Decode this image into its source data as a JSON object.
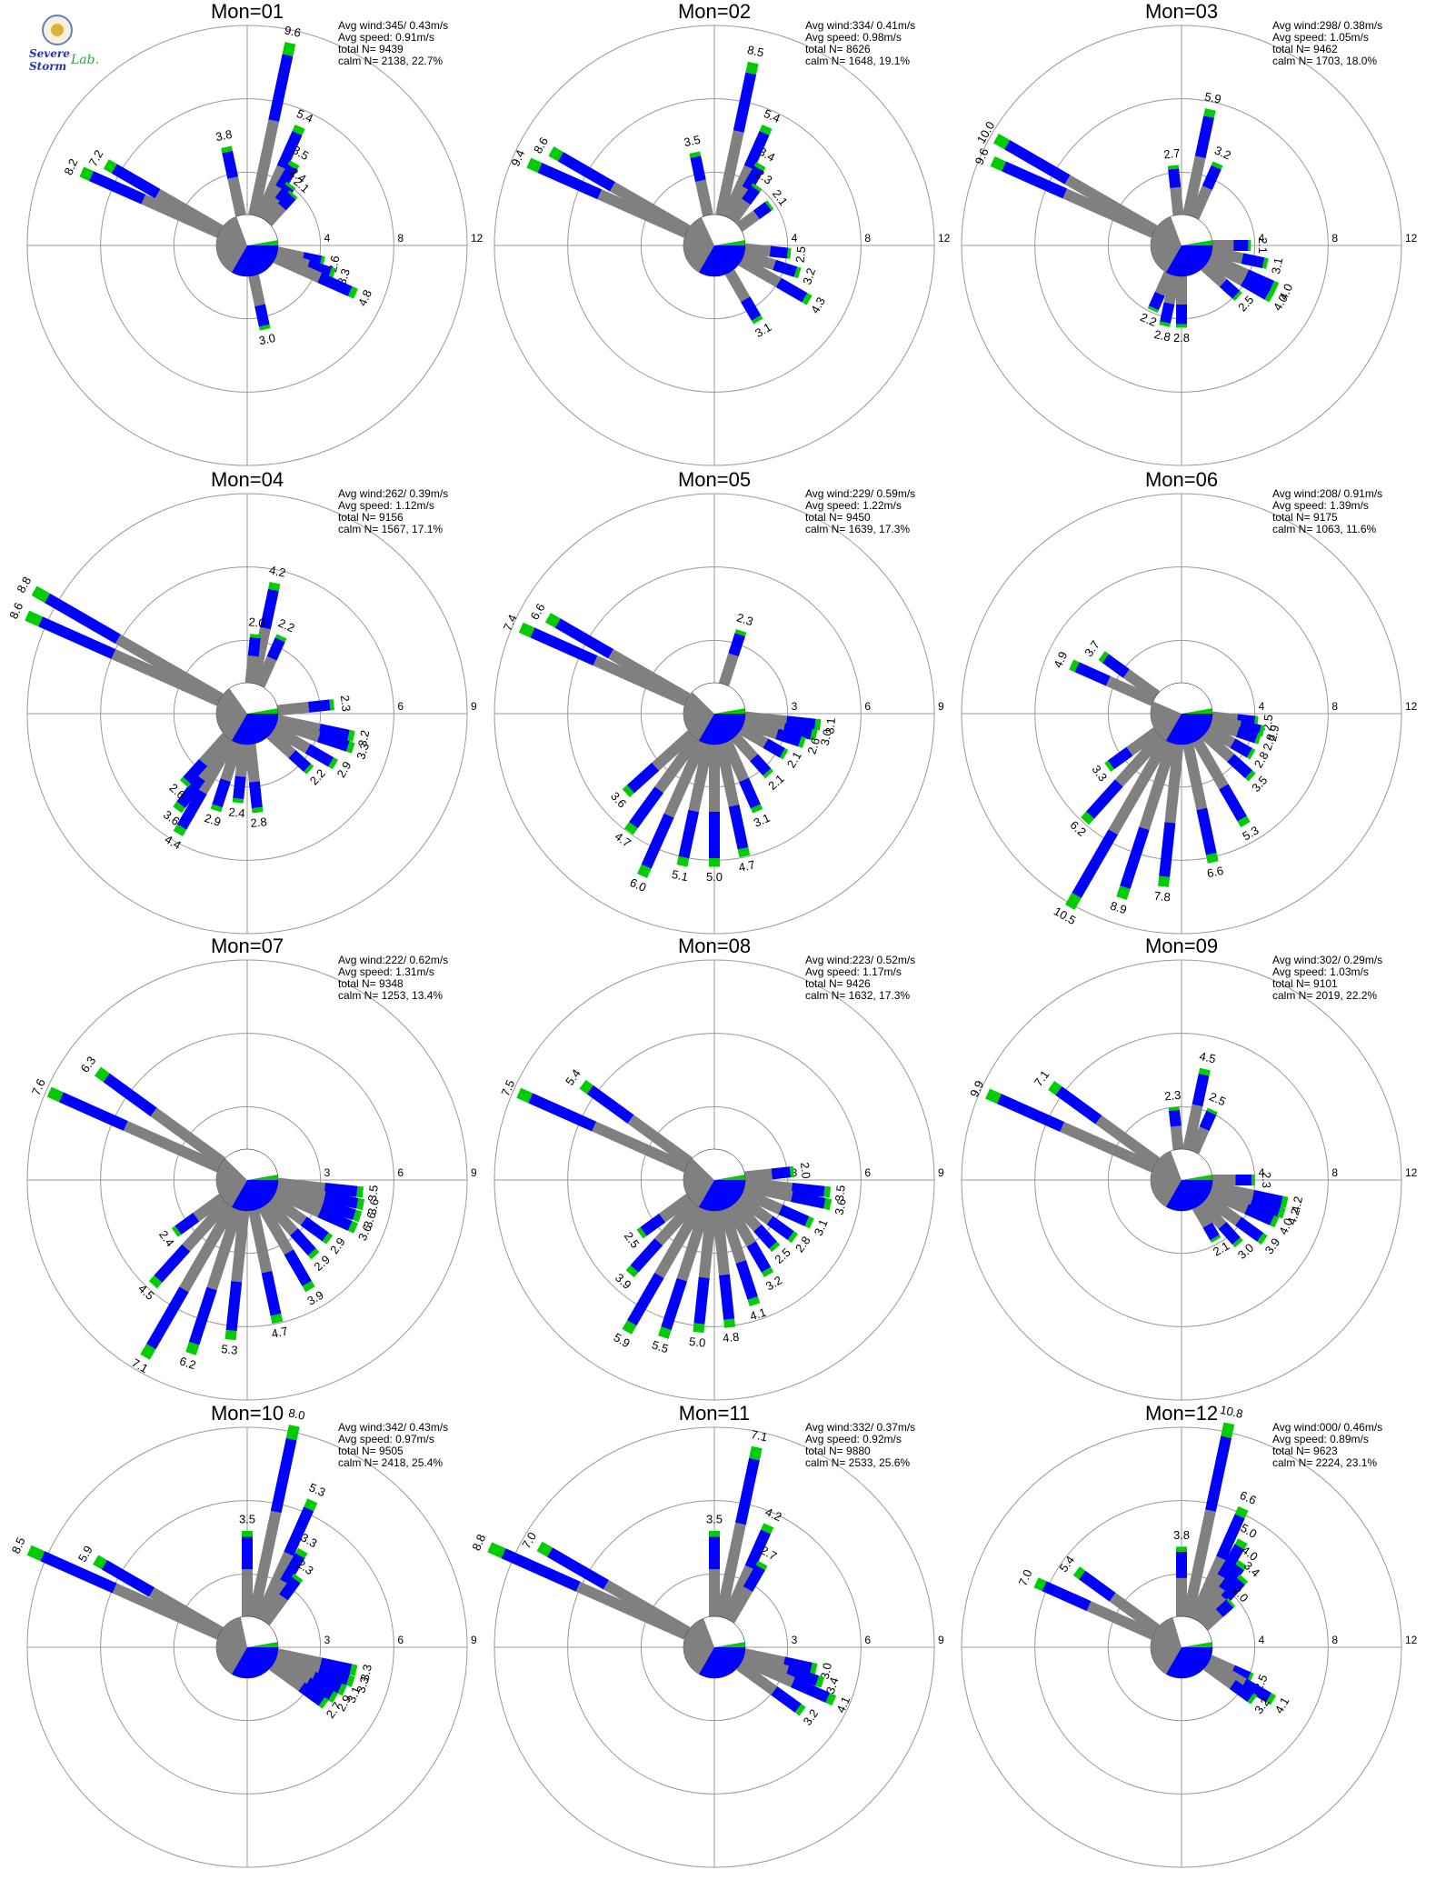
{
  "logo": {
    "line1": "Severe Storm",
    "line2": "Lab."
  },
  "colors": {
    "calm": "#808080",
    "bin1": "#808080",
    "bin2": "#0000ff",
    "bin3": "#00cc00",
    "grid": "#999999"
  },
  "chart_data": [
    {
      "type": "polar-bar",
      "title": "Mon=01",
      "info": [
        "Avg wind:345/ 0.43m/s",
        "Avg speed: 0.91m/s",
        "total N=      9439",
        "calm N=   2138,  22.7%"
      ],
      "ring_max": 12,
      "ring_labels": [
        "4",
        "8",
        "12"
      ],
      "calm_pct": 22.7,
      "calm_split": [
        0.62,
        0.38
      ],
      "bars": [
        {
          "dir": 12,
          "v": 9.6
        },
        {
          "dir": 348,
          "v": 3.8
        },
        {
          "dir": 24,
          "v": 5.4
        },
        {
          "dir": 30,
          "v": 3.5
        },
        {
          "dir": 36,
          "v": 2.4
        },
        {
          "dir": 42,
          "v": 2.1
        },
        {
          "dir": 300,
          "v": 7.2
        },
        {
          "dir": 294,
          "v": 8.2
        },
        {
          "dir": 102,
          "v": 2.6
        },
        {
          "dir": 108,
          "v": 3.3
        },
        {
          "dir": 114,
          "v": 4.8
        },
        {
          "dir": 168,
          "v": 3.0
        }
      ]
    },
    {
      "type": "polar-bar",
      "title": "Mon=02",
      "info": [
        "Avg wind:334/ 0.41m/s",
        "Avg speed: 0.98m/s",
        "total N=      8626",
        "calm N=   1648,  19.1%"
      ],
      "ring_max": 12,
      "ring_labels": [
        "4",
        "8",
        "12"
      ],
      "calm_pct": 19.1,
      "calm_split": [
        0.6,
        0.4
      ],
      "bars": [
        {
          "dir": 12,
          "v": 8.5
        },
        {
          "dir": 348,
          "v": 3.5
        },
        {
          "dir": 24,
          "v": 5.4
        },
        {
          "dir": 30,
          "v": 3.4
        },
        {
          "dir": 36,
          "v": 2.3
        },
        {
          "dir": 54,
          "v": 2.1
        },
        {
          "dir": 300,
          "v": 8.6
        },
        {
          "dir": 294,
          "v": 9.4
        },
        {
          "dir": 96,
          "v": 2.5
        },
        {
          "dir": 108,
          "v": 3.2
        },
        {
          "dir": 120,
          "v": 4.3
        },
        {
          "dir": 150,
          "v": 3.1
        }
      ]
    },
    {
      "type": "polar-bar",
      "title": "Mon=03",
      "info": [
        "Avg wind:298/ 0.38m/s",
        "Avg speed: 1.05m/s",
        "total N=      9462",
        "calm N=   1703,  18.0%"
      ],
      "ring_max": 12,
      "ring_labels": [
        "4",
        "8",
        "12"
      ],
      "calm_pct": 18.0,
      "calm_split": [
        0.62,
        0.38
      ],
      "bars": [
        {
          "dir": 12,
          "v": 5.9
        },
        {
          "dir": 354,
          "v": 2.7
        },
        {
          "dir": 24,
          "v": 3.2
        },
        {
          "dir": 300,
          "v": 10.0
        },
        {
          "dir": 294,
          "v": 9.6
        },
        {
          "dir": 90,
          "v": 2.1
        },
        {
          "dir": 102,
          "v": 3.1
        },
        {
          "dir": 114,
          "v": 4.0
        },
        {
          "dir": 120,
          "v": 4.0
        },
        {
          "dir": 132,
          "v": 2.5
        },
        {
          "dir": 180,
          "v": 2.8
        },
        {
          "dir": 192,
          "v": 2.8
        },
        {
          "dir": 204,
          "v": 2.2
        }
      ]
    },
    {
      "type": "polar-bar",
      "title": "Mon=04",
      "info": [
        "Avg wind:262/ 0.39m/s",
        "Avg speed: 1.12m/s",
        "total N=      9156",
        "calm N=   1567,  17.1%"
      ],
      "ring_max": 9,
      "ring_labels": [
        "3",
        "6",
        "9"
      ],
      "calm_pct": 17.1,
      "calm_split": [
        0.55,
        0.45
      ],
      "bars": [
        {
          "dir": 12,
          "v": 4.2
        },
        {
          "dir": 6,
          "v": 2.0
        },
        {
          "dir": 24,
          "v": 2.2
        },
        {
          "dir": 300,
          "v": 8.8
        },
        {
          "dir": 294,
          "v": 8.6
        },
        {
          "dir": 84,
          "v": 2.3
        },
        {
          "dir": 102,
          "v": 3.2
        },
        {
          "dir": 108,
          "v": 3.3
        },
        {
          "dir": 120,
          "v": 2.9
        },
        {
          "dir": 132,
          "v": 2.2
        },
        {
          "dir": 174,
          "v": 2.8
        },
        {
          "dir": 186,
          "v": 2.4
        },
        {
          "dir": 198,
          "v": 2.9
        },
        {
          "dir": 210,
          "v": 4.4
        },
        {
          "dir": 216,
          "v": 3.6
        },
        {
          "dir": 222,
          "v": 2.6
        }
      ]
    },
    {
      "type": "polar-bar",
      "title": "Mon=05",
      "info": [
        "Avg wind:229/ 0.59m/s",
        "Avg speed: 1.22m/s",
        "total N=      9450",
        "calm N=   1639,  17.3%"
      ],
      "ring_max": 9,
      "ring_labels": [
        "3",
        "6",
        "9"
      ],
      "calm_pct": 17.3,
      "calm_split": [
        0.5,
        0.5
      ],
      "bars": [
        {
          "dir": 18,
          "v": 2.3
        },
        {
          "dir": 300,
          "v": 6.6
        },
        {
          "dir": 294,
          "v": 7.4
        },
        {
          "dir": 96,
          "v": 3.1
        },
        {
          "dir": 102,
          "v": 3.0
        },
        {
          "dir": 108,
          "v": 2.6
        },
        {
          "dir": 120,
          "v": 2.1
        },
        {
          "dir": 138,
          "v": 2.1
        },
        {
          "dir": 156,
          "v": 3.1
        },
        {
          "dir": 168,
          "v": 4.7
        },
        {
          "dir": 180,
          "v": 5.0
        },
        {
          "dir": 192,
          "v": 5.1
        },
        {
          "dir": 204,
          "v": 6.0
        },
        {
          "dir": 216,
          "v": 4.7
        },
        {
          "dir": 228,
          "v": 3.6
        }
      ]
    },
    {
      "type": "polar-bar",
      "title": "Mon=06",
      "info": [
        "Avg wind:208/ 0.91m/s",
        "Avg speed: 1.39m/s",
        "total N=      9175",
        "calm N=   1063,  11.6%"
      ],
      "ring_max": 12,
      "ring_labels": [
        "4",
        "8",
        "12"
      ],
      "calm_pct": 11.6,
      "calm_split": [
        0.4,
        0.6
      ],
      "bars": [
        {
          "dir": 306,
          "v": 3.7
        },
        {
          "dir": 294,
          "v": 4.9
        },
        {
          "dir": 96,
          "v": 2.5
        },
        {
          "dir": 102,
          "v": 2.9
        },
        {
          "dir": 108,
          "v": 2.8
        },
        {
          "dir": 120,
          "v": 2.8
        },
        {
          "dir": 132,
          "v": 3.5
        },
        {
          "dir": 150,
          "v": 5.3
        },
        {
          "dir": 168,
          "v": 6.6
        },
        {
          "dir": 186,
          "v": 7.8
        },
        {
          "dir": 198,
          "v": 8.9
        },
        {
          "dir": 210,
          "v": 10.5
        },
        {
          "dir": 222,
          "v": 6.2
        },
        {
          "dir": 234,
          "v": 3.3
        }
      ]
    },
    {
      "type": "polar-bar",
      "title": "Mon=07",
      "info": [
        "Avg wind:222/ 0.62m/s",
        "Avg speed: 1.31m/s",
        "total N=      9348",
        "calm N=   1253,  13.4%"
      ],
      "ring_max": 9,
      "ring_labels": [
        "3",
        "6",
        "9"
      ],
      "calm_pct": 13.4,
      "calm_split": [
        0.5,
        0.5
      ],
      "bars": [
        {
          "dir": 306,
          "v": 6.3
        },
        {
          "dir": 294,
          "v": 7.6
        },
        {
          "dir": 96,
          "v": 3.5
        },
        {
          "dir": 102,
          "v": 3.6
        },
        {
          "dir": 108,
          "v": 3.6
        },
        {
          "dir": 114,
          "v": 3.6
        },
        {
          "dir": 126,
          "v": 2.9
        },
        {
          "dir": 138,
          "v": 2.9
        },
        {
          "dir": 150,
          "v": 3.9
        },
        {
          "dir": 168,
          "v": 4.7
        },
        {
          "dir": 186,
          "v": 5.3
        },
        {
          "dir": 198,
          "v": 6.2
        },
        {
          "dir": 210,
          "v": 7.1
        },
        {
          "dir": 222,
          "v": 4.5
        },
        {
          "dir": 234,
          "v": 2.4
        }
      ]
    },
    {
      "type": "polar-bar",
      "title": "Mon=08",
      "info": [
        "Avg wind:223/ 0.52m/s",
        "Avg speed: 1.17m/s",
        "total N=      9426",
        "calm N=   1632,  17.3%"
      ],
      "ring_max": 9,
      "ring_labels": [
        "3",
        "6",
        "9"
      ],
      "calm_pct": 17.3,
      "calm_split": [
        0.5,
        0.5
      ],
      "bars": [
        {
          "dir": 306,
          "v": 5.4
        },
        {
          "dir": 294,
          "v": 7.5
        },
        {
          "dir": 84,
          "v": 2.0
        },
        {
          "dir": 96,
          "v": 3.5
        },
        {
          "dir": 102,
          "v": 3.6
        },
        {
          "dir": 114,
          "v": 3.1
        },
        {
          "dir": 126,
          "v": 2.8
        },
        {
          "dir": 138,
          "v": 2.5
        },
        {
          "dir": 150,
          "v": 3.2
        },
        {
          "dir": 162,
          "v": 4.1
        },
        {
          "dir": 174,
          "v": 4.8
        },
        {
          "dir": 186,
          "v": 5.0
        },
        {
          "dir": 198,
          "v": 5.5
        },
        {
          "dir": 210,
          "v": 5.9
        },
        {
          "dir": 222,
          "v": 3.9
        },
        {
          "dir": 234,
          "v": 2.5
        }
      ]
    },
    {
      "type": "polar-bar",
      "title": "Mon=09",
      "info": [
        "Avg wind:302/ 0.29m/s",
        "Avg speed: 1.03m/s",
        "total N=      9101",
        "calm N=   2019,  22.2%"
      ],
      "ring_max": 12,
      "ring_labels": [
        "4",
        "8",
        "12"
      ],
      "calm_pct": 22.2,
      "calm_split": [
        0.62,
        0.38
      ],
      "bars": [
        {
          "dir": 12,
          "v": 4.5
        },
        {
          "dir": 354,
          "v": 2.3
        },
        {
          "dir": 24,
          "v": 2.5
        },
        {
          "dir": 306,
          "v": 7.1
        },
        {
          "dir": 294,
          "v": 9.9
        },
        {
          "dir": 90,
          "v": 2.3
        },
        {
          "dir": 102,
          "v": 4.2
        },
        {
          "dir": 108,
          "v": 4.2
        },
        {
          "dir": 114,
          "v": 4.0
        },
        {
          "dir": 126,
          "v": 3.9
        },
        {
          "dir": 138,
          "v": 3.0
        },
        {
          "dir": 150,
          "v": 2.1
        }
      ]
    },
    {
      "type": "polar-bar",
      "title": "Mon=10",
      "info": [
        "Avg wind:342/ 0.43m/s",
        "Avg speed: 0.97m/s",
        "total N=      9505",
        "calm N=   2418,  25.4%"
      ],
      "ring_max": 9,
      "ring_labels": [
        "3",
        "6",
        "9"
      ],
      "calm_pct": 25.4,
      "calm_split": [
        0.66,
        0.34
      ],
      "bars": [
        {
          "dir": 12,
          "v": 8.0
        },
        {
          "dir": 0,
          "v": 3.5
        },
        {
          "dir": 24,
          "v": 5.3
        },
        {
          "dir": 30,
          "v": 3.3
        },
        {
          "dir": 36,
          "v": 2.3
        },
        {
          "dir": 300,
          "v": 5.9
        },
        {
          "dir": 294,
          "v": 8.5
        },
        {
          "dir": 102,
          "v": 3.3
        },
        {
          "dir": 108,
          "v": 3.3
        },
        {
          "dir": 114,
          "v": 3.1
        },
        {
          "dir": 120,
          "v": 2.9
        },
        {
          "dir": 126,
          "v": 2.7
        }
      ]
    },
    {
      "type": "polar-bar",
      "title": "Mon=11",
      "info": [
        "Avg wind:332/ 0.37m/s",
        "Avg speed: 0.92m/s",
        "total N=      9880",
        "calm N=   2533,  25.6%"
      ],
      "ring_max": 9,
      "ring_labels": [
        "3",
        "6",
        "9"
      ],
      "calm_pct": 25.6,
      "calm_split": [
        0.62,
        0.38
      ],
      "bars": [
        {
          "dir": 12,
          "v": 7.1
        },
        {
          "dir": 0,
          "v": 3.5
        },
        {
          "dir": 24,
          "v": 4.2
        },
        {
          "dir": 30,
          "v": 2.7
        },
        {
          "dir": 300,
          "v": 7.0
        },
        {
          "dir": 294,
          "v": 8.8
        },
        {
          "dir": 102,
          "v": 3.0
        },
        {
          "dir": 108,
          "v": 3.4
        },
        {
          "dir": 114,
          "v": 4.1
        },
        {
          "dir": 126,
          "v": 3.2
        }
      ]
    },
    {
      "type": "polar-bar",
      "title": "Mon=12",
      "info": [
        "Avg wind:000/ 0.46m/s",
        "Avg speed: 0.89m/s",
        "total N=      9623",
        "calm N=   2224,  23.1%"
      ],
      "ring_max": 12,
      "ring_labels": [
        "4",
        "8",
        "12"
      ],
      "calm_pct": 23.1,
      "calm_split": [
        0.64,
        0.36
      ],
      "bars": [
        {
          "dir": 12,
          "v": 10.8
        },
        {
          "dir": 0,
          "v": 3.8
        },
        {
          "dir": 24,
          "v": 6.6
        },
        {
          "dir": 30,
          "v": 5.0
        },
        {
          "dir": 36,
          "v": 4.0
        },
        {
          "dir": 42,
          "v": 3.4
        },
        {
          "dir": 48,
          "v": 2.0
        },
        {
          "dir": 306,
          "v": 5.4
        },
        {
          "dir": 294,
          "v": 7.0
        },
        {
          "dir": 114,
          "v": 2.5
        },
        {
          "dir": 120,
          "v": 4.1
        },
        {
          "dir": 126,
          "v": 3.2
        }
      ]
    }
  ]
}
